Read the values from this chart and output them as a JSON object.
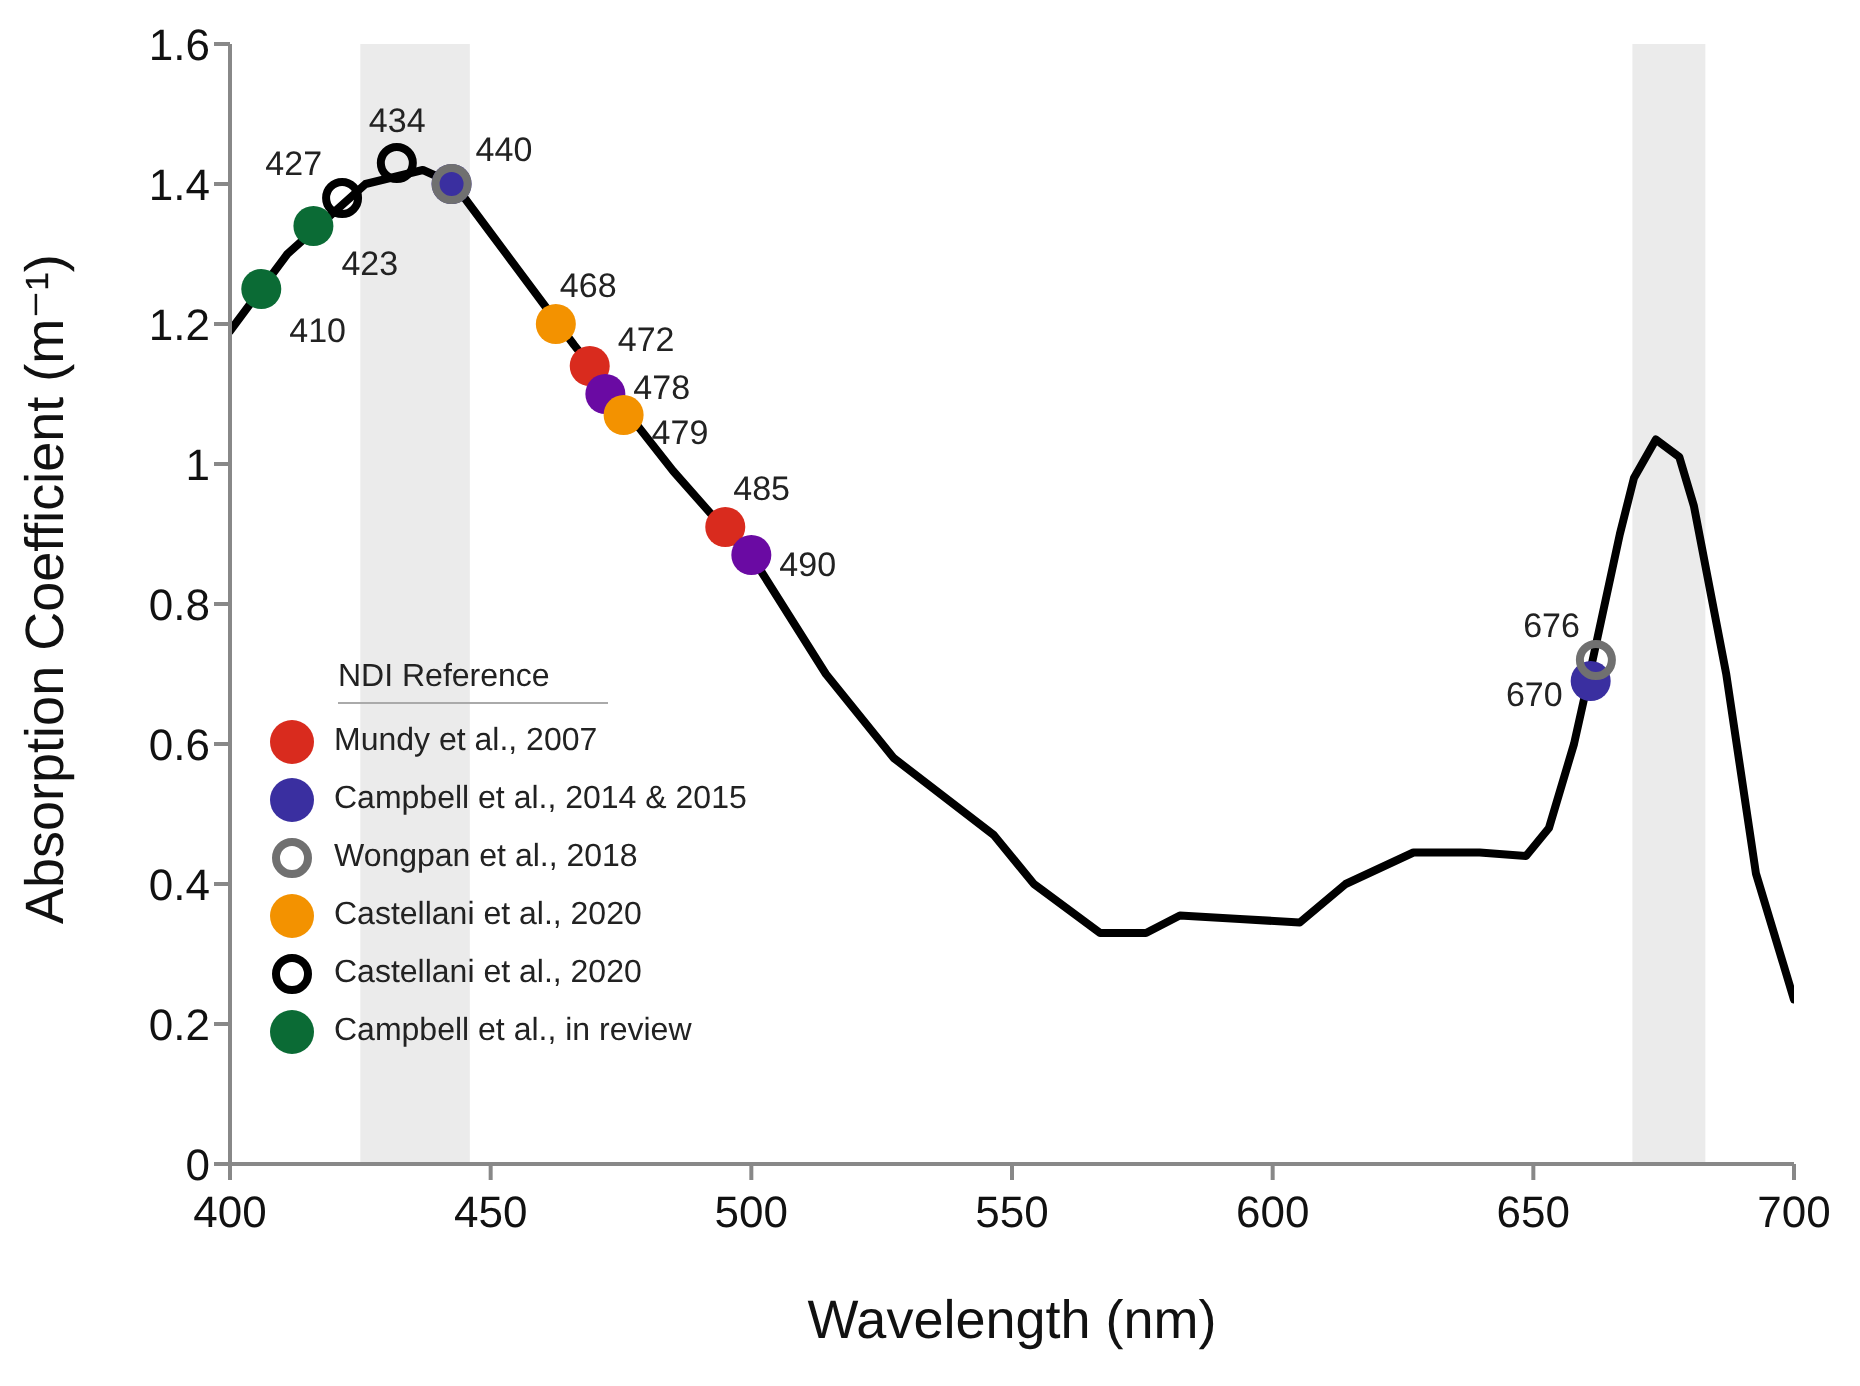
{
  "chart_data": {
    "type": "scatter",
    "xlabel": "Wavelength (nm)",
    "ylabel": "Absorption Coefficient (m⁻¹)",
    "legend_title": "NDI Reference",
    "legend": "bottom left",
    "grid": false,
    "marker": "circle",
    "xlim": [
      400,
      700
    ],
    "xticks": [
      400,
      450,
      500,
      550,
      600,
      650,
      700
    ],
    "ylim": [
      0,
      1.6
    ],
    "yticks": [
      0,
      0.2,
      0.4,
      0.6,
      0.8,
      1,
      1.2,
      1.4,
      1.6
    ],
    "bands": [
      {
        "axis": "x",
        "from": 425,
        "to": 446,
        "color": "#ebebeb"
      },
      {
        "axis": "x",
        "from": 669,
        "to": 683,
        "color": "#ebebeb"
      }
    ],
    "annotations": [
      {
        "text": "410",
        "x": 406,
        "y": 1.25
      },
      {
        "text": "423",
        "x": 416,
        "y": 1.34
      },
      {
        "text": "427",
        "x": 421.5,
        "y": 1.38
      },
      {
        "text": "434",
        "x": 432,
        "y": 1.43
      },
      {
        "text": "440",
        "x": 442.5,
        "y": 1.4
      },
      {
        "text": "468",
        "x": 462.5,
        "y": 1.2
      },
      {
        "text": "472",
        "x": 469,
        "y": 1.14
      },
      {
        "text": "478",
        "x": 472,
        "y": 1.1
      },
      {
        "text": "479",
        "x": 475.5,
        "y": 1.07
      },
      {
        "text": "485",
        "x": 495,
        "y": 0.91
      },
      {
        "text": "490",
        "x": 500,
        "y": 0.87
      },
      {
        "text": "676",
        "x": 662,
        "y": 0.72
      },
      {
        "text": "670",
        "x": 661,
        "y": 0.69
      }
    ],
    "series": [
      {
        "type": "line",
        "color": "#000000",
        "marker": "none",
        "x": [
          400,
          411,
          426,
          437,
          443,
          450,
          466,
          485,
          501.6,
          514.3,
          527.3,
          546.5,
          554.2,
          566.9,
          575.7,
          582.2,
          593.7,
          605.2,
          614,
          627,
          639.7,
          648.6,
          653,
          657.8,
          660.8,
          666.6,
          669.3,
          673.5,
          678,
          680.8,
          687,
          692.7,
          700
        ],
        "values": [
          1.19,
          1.3,
          1.4,
          1.42,
          1.4,
          1.33,
          1.17,
          0.99,
          0.85,
          0.7,
          0.58,
          0.47,
          0.4,
          0.33,
          0.33,
          0.355,
          0.35,
          0.345,
          0.4,
          0.445,
          0.445,
          0.44,
          0.48,
          0.6,
          0.7,
          0.9,
          0.98,
          1.035,
          1.01,
          0.94,
          0.7,
          0.415,
          0.235
        ]
      },
      {
        "name": "Mundy et al., 2007",
        "color": "#d92b1e",
        "x": [
          469,
          495
        ],
        "values": [
          1.14,
          0.91
        ]
      },
      {
        "name": "Campbell et al., 2014 & 2015",
        "color": "#3a2fa0",
        "colors": [
          "#3a2fa0",
          "#6a0aa3",
          "#6a0aa3",
          "#3a2fa0"
        ],
        "x": [
          442.5,
          472,
          500,
          661
        ],
        "values": [
          1.4,
          1.1,
          0.87,
          0.69
        ]
      },
      {
        "name": "Wongpan et al., 2018",
        "color": "#707070",
        "x": [
          442.5,
          662
        ],
        "values": [
          1.4,
          0.72
        ]
      },
      {
        "name": "Castellani et al., 2020",
        "color": "#f39200",
        "x": [
          462.5,
          475.5
        ],
        "values": [
          1.2,
          1.07
        ]
      },
      {
        "name": "Castellani et al., 2020",
        "color": "#000000",
        "x": [
          421.5,
          432
        ],
        "values": [
          1.38,
          1.43
        ]
      },
      {
        "name": "Campbell et al., in review",
        "color": "#0b6b35",
        "x": [
          406,
          416
        ],
        "values": [
          1.25,
          1.34
        ]
      }
    ]
  }
}
